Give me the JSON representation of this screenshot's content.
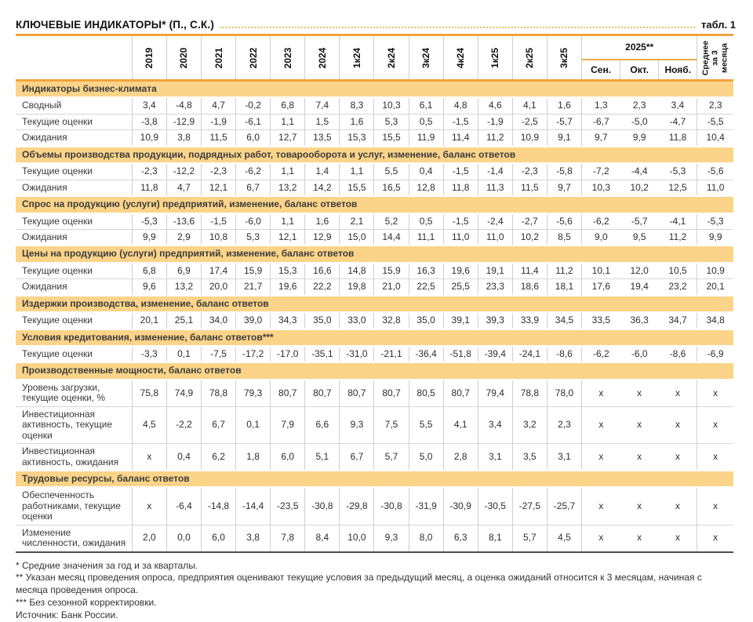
{
  "page": {
    "title": "КЛЮЧЕВЫЕ ИНДИКАТОРЫ* (П., С.К.)",
    "table_label": "табл. 1"
  },
  "colors": {
    "accent_orange": "#F2A43E",
    "band_orange": "#FBD489",
    "grid_gray": "#CFCFCF",
    "bottom_rule": "#4D4D4D"
  },
  "table": {
    "columns": [
      "2019",
      "2020",
      "2021",
      "2022",
      "2023",
      "2024",
      "1к24",
      "2к24",
      "3к24",
      "4к24",
      "1к25",
      "2к25",
      "3к25"
    ],
    "group_2025": {
      "label": "2025**",
      "months": [
        "Сен.",
        "Окт.",
        "Нояб."
      ]
    },
    "avg_column": "Среднее за 3 месяца",
    "sections": [
      {
        "title": "Индикаторы бизнес-климата",
        "rows": [
          {
            "label": "Сводный",
            "values": [
              "3,4",
              "-4,8",
              "4,7",
              "-0,2",
              "6,8",
              "7,4",
              "8,3",
              "10,3",
              "6,1",
              "4,8",
              "4,6",
              "4,1",
              "1,6",
              "1,3",
              "2,3",
              "3,4",
              "2,3"
            ]
          },
          {
            "label": "Текущие оценки",
            "values": [
              "-3,8",
              "-12,9",
              "-1,9",
              "-6,1",
              "1,1",
              "1,5",
              "1,6",
              "5,3",
              "0,5",
              "-1,5",
              "-1,9",
              "-2,5",
              "-5,7",
              "-6,7",
              "-5,0",
              "-4,7",
              "-5,5"
            ]
          },
          {
            "label": "Ожидания",
            "values": [
              "10,9",
              "3,8",
              "11,5",
              "6,0",
              "12,7",
              "13,5",
              "15,3",
              "15,5",
              "11,9",
              "11,4",
              "11,2",
              "10,9",
              "9,1",
              "9,7",
              "9,9",
              "11,8",
              "10,4"
            ]
          }
        ]
      },
      {
        "title": "Объемы производства продукции, подрядных работ, товарооборота и услуг, изменение, баланс ответов",
        "rows": [
          {
            "label": "Текущие оценки",
            "values": [
              "-2,3",
              "-12,2",
              "-2,3",
              "-6,2",
              "1,1",
              "1,4",
              "1,1",
              "5,5",
              "0,4",
              "-1,5",
              "-1,4",
              "-2,3",
              "-5,8",
              "-7,2",
              "-4,4",
              "-5,3",
              "-5,6"
            ]
          },
          {
            "label": "Ожидания",
            "values": [
              "11,8",
              "4,7",
              "12,1",
              "6,7",
              "13,2",
              "14,2",
              "15,5",
              "16,5",
              "12,8",
              "11,8",
              "11,3",
              "11,5",
              "9,7",
              "10,3",
              "10,2",
              "12,5",
              "11,0"
            ]
          }
        ]
      },
      {
        "title": "Спрос на продукцию (услуги) предприятий, изменение, баланс ответов",
        "rows": [
          {
            "label": "Текущие оценки",
            "values": [
              "-5,3",
              "-13,6",
              "-1,5",
              "-6,0",
              "1,1",
              "1,6",
              "2,1",
              "5,2",
              "0,5",
              "-1,5",
              "-2,4",
              "-2,7",
              "-5,6",
              "-6,2",
              "-5,7",
              "-4,1",
              "-5,3"
            ]
          },
          {
            "label": "Ожидания",
            "values": [
              "9,9",
              "2,9",
              "10,8",
              "5,3",
              "12,1",
              "12,9",
              "15,0",
              "14,4",
              "11,1",
              "11,0",
              "11,0",
              "10,2",
              "8,5",
              "9,0",
              "9,5",
              "11,2",
              "9,9"
            ]
          }
        ]
      },
      {
        "title": "Цены на продукцию (услуги) предприятий, изменение, баланс ответов",
        "rows": [
          {
            "label": "Текущие оценки",
            "values": [
              "6,8",
              "6,9",
              "17,4",
              "15,9",
              "15,3",
              "16,6",
              "14,8",
              "15,9",
              "16,3",
              "19,6",
              "19,1",
              "11,4",
              "11,2",
              "10,1",
              "12,0",
              "10,5",
              "10,9"
            ]
          },
          {
            "label": "Ожидания",
            "values": [
              "9,6",
              "13,2",
              "20,0",
              "21,7",
              "19,6",
              "22,2",
              "19,8",
              "21,0",
              "22,5",
              "25,5",
              "23,3",
              "18,6",
              "18,1",
              "17,6",
              "19,4",
              "23,2",
              "20,1"
            ]
          }
        ]
      },
      {
        "title": "Издержки производства, изменение, баланс ответов",
        "rows": [
          {
            "label": "Текущие оценки",
            "values": [
              "20,1",
              "25,1",
              "34,0",
              "39,0",
              "34,3",
              "35,0",
              "33,0",
              "32,8",
              "35,0",
              "39,1",
              "39,3",
              "33,9",
              "34,5",
              "33,5",
              "36,3",
              "34,7",
              "34,8"
            ]
          }
        ]
      },
      {
        "title": "Условия кредитования, изменение, баланс ответов***",
        "rows": [
          {
            "label": "Текущие оценки",
            "values": [
              "-3,3",
              "0,1",
              "-7,5",
              "-17,2",
              "-17,0",
              "-35,1",
              "-31,0",
              "-21,1",
              "-36,4",
              "-51,8",
              "-39,4",
              "-24,1",
              "-8,6",
              "-6,2",
              "-6,0",
              "-8,6",
              "-6,9"
            ]
          }
        ]
      },
      {
        "title": "Производственные мощности, баланс ответов",
        "rows": [
          {
            "label": "Уровень загрузки, текущие оценки, %",
            "values": [
              "75,8",
              "74,9",
              "78,8",
              "79,3",
              "80,7",
              "80,7",
              "80,7",
              "80,7",
              "80,5",
              "80,7",
              "79,4",
              "78,8",
              "78,0",
              "x",
              "x",
              "x",
              "x"
            ]
          },
          {
            "label": "Инвестиционная активность, текущие оценки",
            "values": [
              "4,5",
              "-2,2",
              "6,7",
              "0,1",
              "7,9",
              "6,6",
              "9,3",
              "7,5",
              "5,5",
              "4,1",
              "3,4",
              "3,2",
              "2,3",
              "x",
              "x",
              "x",
              "x"
            ]
          },
          {
            "label": "Инвестиционная активность, ожидания",
            "values": [
              "x",
              "0,4",
              "6,2",
              "1,8",
              "6,0",
              "5,1",
              "6,7",
              "5,7",
              "5,0",
              "2,8",
              "3,1",
              "3,5",
              "3,1",
              "x",
              "x",
              "x",
              "x"
            ]
          }
        ]
      },
      {
        "title": "Трудовые ресурсы, баланс ответов",
        "rows": [
          {
            "label": "Обеспеченность работниками, текущие оценки",
            "values": [
              "x",
              "-6,4",
              "-14,8",
              "-14,4",
              "-23,5",
              "-30,8",
              "-29,8",
              "-30,8",
              "-31,9",
              "-30,9",
              "-30,5",
              "-27,5",
              "-25,7",
              "x",
              "x",
              "x",
              "x"
            ]
          },
          {
            "label": "Изменение численности, ожидания",
            "values": [
              "2,0",
              "0,0",
              "6,0",
              "3,8",
              "7,8",
              "8,4",
              "10,0",
              "9,3",
              "8,0",
              "6,3",
              "8,1",
              "5,7",
              "4,5",
              "x",
              "x",
              "x",
              "x"
            ]
          }
        ]
      }
    ]
  },
  "footnotes": [
    "* Средние значения за год и за кварталы.",
    "** Указан месяц проведения опроса, предприятия оценивают текущие условия за предыдущий месяц, а оценка ожиданий относится к 3 месяцам, начиная с месяца проведения опроса.",
    "*** Без сезонной корректировки.",
    "Источник: Банк России."
  ]
}
